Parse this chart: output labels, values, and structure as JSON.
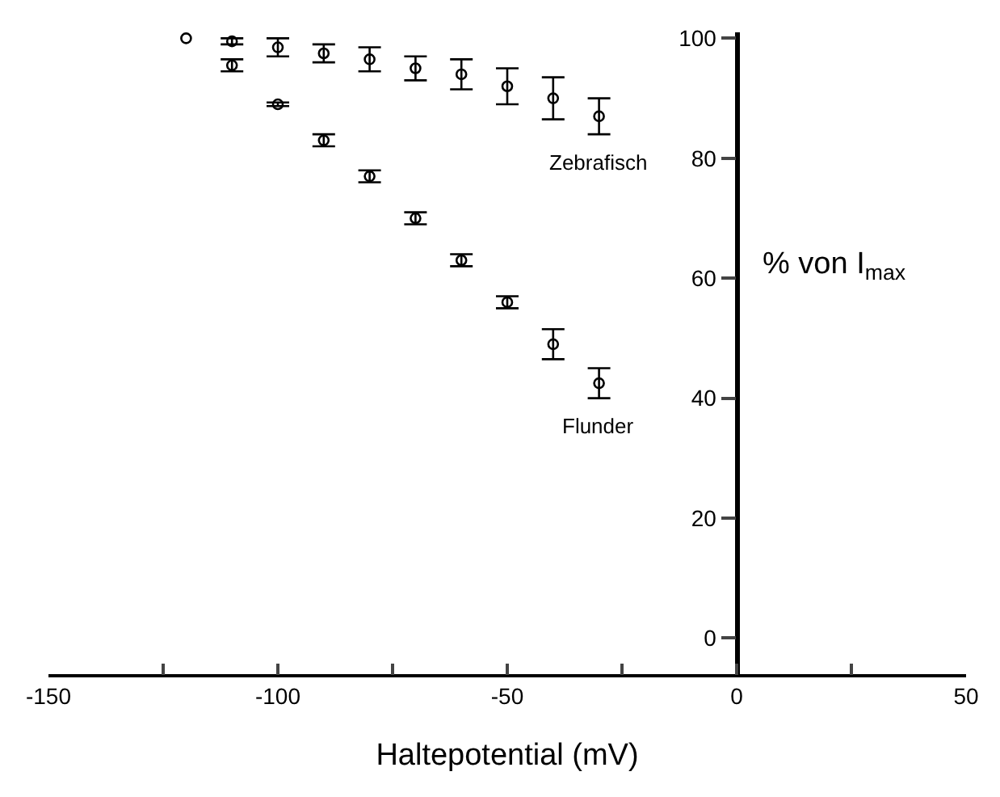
{
  "chart_data": {
    "type": "scatter",
    "xlabel": "Haltepotential (mV)",
    "ylabel": "% von I$_{max}$",
    "series": [
      {
        "name": "Zebrafisch",
        "color": "#000000",
        "x": [
          -120,
          -110,
          -100,
          -90,
          -80,
          -70,
          -60,
          -50,
          -40,
          -30
        ],
        "values": [
          100,
          99.5,
          98.5,
          97.5,
          96.5,
          95,
          94,
          92,
          90,
          87
        ],
        "errors": [
          null,
          0.5,
          1.5,
          1.5,
          2,
          2,
          2.5,
          3,
          3.5,
          3
        ]
      },
      {
        "name": "Flunder",
        "color": "#000000",
        "x": [
          -110,
          -100,
          -90,
          -80,
          -70,
          -60,
          -50,
          -40,
          -30
        ],
        "values": [
          95.5,
          89,
          83,
          77,
          70,
          63,
          56,
          49,
          42.5
        ],
        "errors": [
          1,
          0.3,
          1,
          1,
          1,
          1,
          1,
          2.5,
          2.5
        ]
      }
    ],
    "marker": "circle",
    "grid": false,
    "legend": false,
    "xlim": [
      -150,
      50
    ],
    "xticks": [
      -150,
      {
        "value": -125,
        "label": null
      },
      -100,
      {
        "value": -75,
        "label": null
      },
      -50,
      {
        "value": -25,
        "label": null
      },
      0,
      {
        "value": 25,
        "label": null
      },
      50
    ],
    "ylim": [
      -6,
      101
    ],
    "yticks": [
      0,
      20,
      40,
      60,
      80,
      100
    ]
  }
}
